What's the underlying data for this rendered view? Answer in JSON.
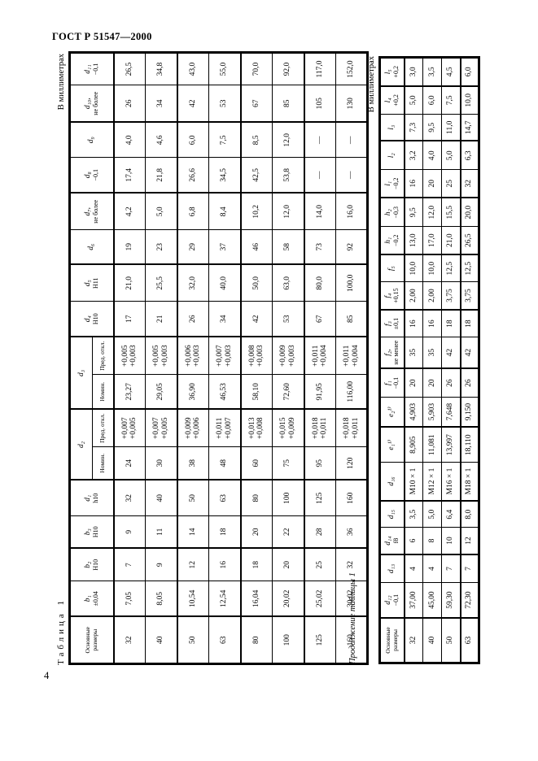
{
  "page": {
    "doc_number": "ГОСТ Р 51547—2000",
    "page_number": "4"
  },
  "table1": {
    "caption": "Таблица 1",
    "units": "В миллиметрах",
    "header_rows": [
      [
        {
          "plain": "Основные\nразмеры",
          "rowspan": 2
        },
        {
          "s": "b₁",
          "t": "±0,04",
          "rowspan": 2
        },
        {
          "s": "b₂",
          "t": "H10",
          "rowspan": 2
        },
        {
          "s": "b₃",
          "t": "H10",
          "rowspan": 2
        },
        {
          "s": "d₁",
          "t": "h10",
          "rowspan": 2
        },
        {
          "s": "d₂",
          "colspan": 2
        },
        {
          "s": "d₃",
          "colspan": 2
        },
        {
          "s": "d₄",
          "t": "H10",
          "rowspan": 2
        },
        {
          "s": "d₅",
          "t": "H11",
          "rowspan": 2
        },
        {
          "s": "d₆",
          "rowspan": 2
        },
        {
          "s": "d₇,",
          "t": "не более",
          "rowspan": 2
        },
        {
          "s": "d₈",
          "t": "−0,1",
          "rowspan": 2
        },
        {
          "s": "d₉",
          "rowspan": 2
        },
        {
          "s": "d₁₀,",
          "t": "не более",
          "rowspan": 2
        },
        {
          "s": "d₁₁",
          "t": "−0,1",
          "rowspan": 2
        }
      ],
      [
        {
          "plain": "Номин."
        },
        {
          "plain": "Пред. откл."
        },
        {
          "plain": "Номин."
        },
        {
          "plain": "Пред. откл."
        }
      ]
    ],
    "rows": [
      [
        "32",
        "7,05",
        "7",
        "9",
        "32",
        "24",
        "+0,007\n+0,005",
        "23,27",
        "+0,005\n+0,003",
        "17",
        "21,0",
        "19",
        "4,2",
        "17,4",
        "4,0",
        "26",
        "26,5"
      ],
      [
        "40",
        "8,05",
        "9",
        "11",
        "40",
        "30",
        "+0,007\n+0,005",
        "29,05",
        "+0,005\n+0,003",
        "21",
        "25,5",
        "23",
        "5,0",
        "21,8",
        "4,6",
        "34",
        "34,8"
      ],
      [
        "50",
        "10,54",
        "12",
        "14",
        "50",
        "38",
        "+0,009\n+0,006",
        "36,90",
        "+0,006\n+0,003",
        "26",
        "32,0",
        "29",
        "6,8",
        "26,6",
        "6,0",
        "42",
        "43,0"
      ],
      [
        "63",
        "12,54",
        "16",
        "18",
        "63",
        "48",
        "+0,011\n+0,007",
        "46,53",
        "+0,007\n+0,003",
        "34",
        "40,0",
        "37",
        "8,4",
        "34,5",
        "7,5",
        "53",
        "55,0"
      ],
      [
        "80",
        "16,04",
        "18",
        "20",
        "80",
        "60",
        "+0,013\n+0,008",
        "58,10",
        "+0,008\n+0,003",
        "42",
        "50,0",
        "46",
        "10,2",
        "42,5",
        "8,5",
        "67",
        "70,0"
      ],
      [
        "100",
        "20,02",
        "20",
        "22",
        "100",
        "75",
        "+0,015\n+0,009",
        "72,60",
        "+0,009\n+0,003",
        "53",
        "63,0",
        "58",
        "12,0",
        "53,8",
        "12,0",
        "85",
        "92,0"
      ],
      [
        "125",
        "25,02",
        "25",
        "28",
        "125",
        "95",
        "+0,018\n+0,011",
        "91,95",
        "+0,011\n+0,004",
        "67",
        "80,0",
        "73",
        "14,0",
        "—",
        "—",
        "105",
        "117,0"
      ],
      [
        "160",
        "30,02",
        "32",
        "36",
        "160",
        "120",
        "+0,018\n+0,011",
        "116,00",
        "+0,011\n+0,004",
        "85",
        "100,0",
        "92",
        "16,0",
        "—",
        "—",
        "130",
        "152,0"
      ]
    ]
  },
  "table2": {
    "caption": "Продолжение таблицы 1",
    "units": "В миллиметрах",
    "header_rows": [
      [
        {
          "plain": "Основные\nразмеры"
        },
        {
          "s": "d₁₂",
          "t": "−0,1"
        },
        {
          "s": "d₁₃"
        },
        {
          "s": "d₁₄",
          "t": "f8"
        },
        {
          "s": "d₁₅"
        },
        {
          "s": "d₁₆"
        },
        {
          "s": "e₁¹⁾"
        },
        {
          "s": "e₂¹⁾"
        },
        {
          "s": "f₁",
          "t": "−0,1"
        },
        {
          "s": "f₂,",
          "t": "не менее"
        },
        {
          "s": "f₃",
          "t": "±0,1"
        },
        {
          "s": "f₄",
          "t": "+0,15"
        },
        {
          "s": "f₅"
        },
        {
          "s": "h₁",
          "t": "−0,2"
        },
        {
          "s": "h₂",
          "t": "−0,3"
        },
        {
          "s": "l₁",
          "t": "−0,2"
        },
        {
          "s": "l₂"
        },
        {
          "s": "l₃"
        },
        {
          "s": "l₄",
          "t": "+0,2"
        },
        {
          "s": "l₅",
          "t": "+0,2"
        }
      ]
    ],
    "rows": [
      [
        "32",
        "37,00",
        "4",
        "6",
        "3,5",
        "M10 × 1",
        "8,905",
        "4,903",
        "20",
        "35",
        "16",
        "2,00",
        "10,0",
        "13,0",
        "9,5",
        "16",
        "3,2",
        "7,3",
        "5,0",
        "3,0"
      ],
      [
        "40",
        "45,00",
        "4",
        "8",
        "5,0",
        "M12 × 1",
        "11,081",
        "5,903",
        "20",
        "35",
        "16",
        "2,00",
        "10,0",
        "17,0",
        "12,0",
        "20",
        "4,0",
        "9,5",
        "6,0",
        "3,5"
      ],
      [
        "50",
        "59,30",
        "7",
        "10",
        "6,4",
        "M16 × 1",
        "13,997",
        "7,648",
        "26",
        "42",
        "18",
        "3,75",
        "12,5",
        "21,0",
        "15,5",
        "25",
        "5,0",
        "11,0",
        "7,5",
        "4,5"
      ],
      [
        "63",
        "72,30",
        "7",
        "12",
        "8,0",
        "M18 × 1",
        "18,110",
        "9,150",
        "26",
        "42",
        "18",
        "3,75",
        "12,5",
        "26,5",
        "20,0",
        "32",
        "6,3",
        "14,7",
        "10,0",
        "6,0"
      ]
    ]
  }
}
